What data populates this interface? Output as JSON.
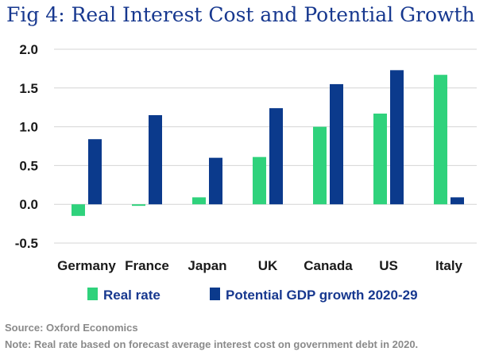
{
  "chart_data": {
    "type": "bar",
    "title": "Fig 4: Real Interest Cost and Potential Growth",
    "categories": [
      "Germany",
      "France",
      "Japan",
      "UK",
      "Canada",
      "US",
      "Italy"
    ],
    "series": [
      {
        "name": "Real rate",
        "color": "#2fd27c",
        "values": [
          -0.15,
          -0.02,
          0.09,
          0.61,
          1.0,
          1.17,
          1.67
        ]
      },
      {
        "name": "Potential GDP growth 2020-29",
        "color": "#0b3a8c",
        "values": [
          0.84,
          1.15,
          0.6,
          1.24,
          1.55,
          1.73,
          0.09
        ]
      }
    ],
    "yticks": [
      -0.5,
      0.0,
      0.5,
      1.0,
      1.5,
      2.0
    ],
    "ytick_labels": [
      "-0.5",
      "0.0",
      "0.5",
      "1.0",
      "1.5",
      "2.0"
    ],
    "ylim": [
      -0.5,
      2.0
    ],
    "xlabel": "",
    "ylabel": "",
    "grid": true,
    "legend_position": "bottom"
  },
  "footer": {
    "source": "Source: Oxford Economics",
    "note": "Note: Real rate based on forecast average interest cost on government debt in 2020."
  }
}
